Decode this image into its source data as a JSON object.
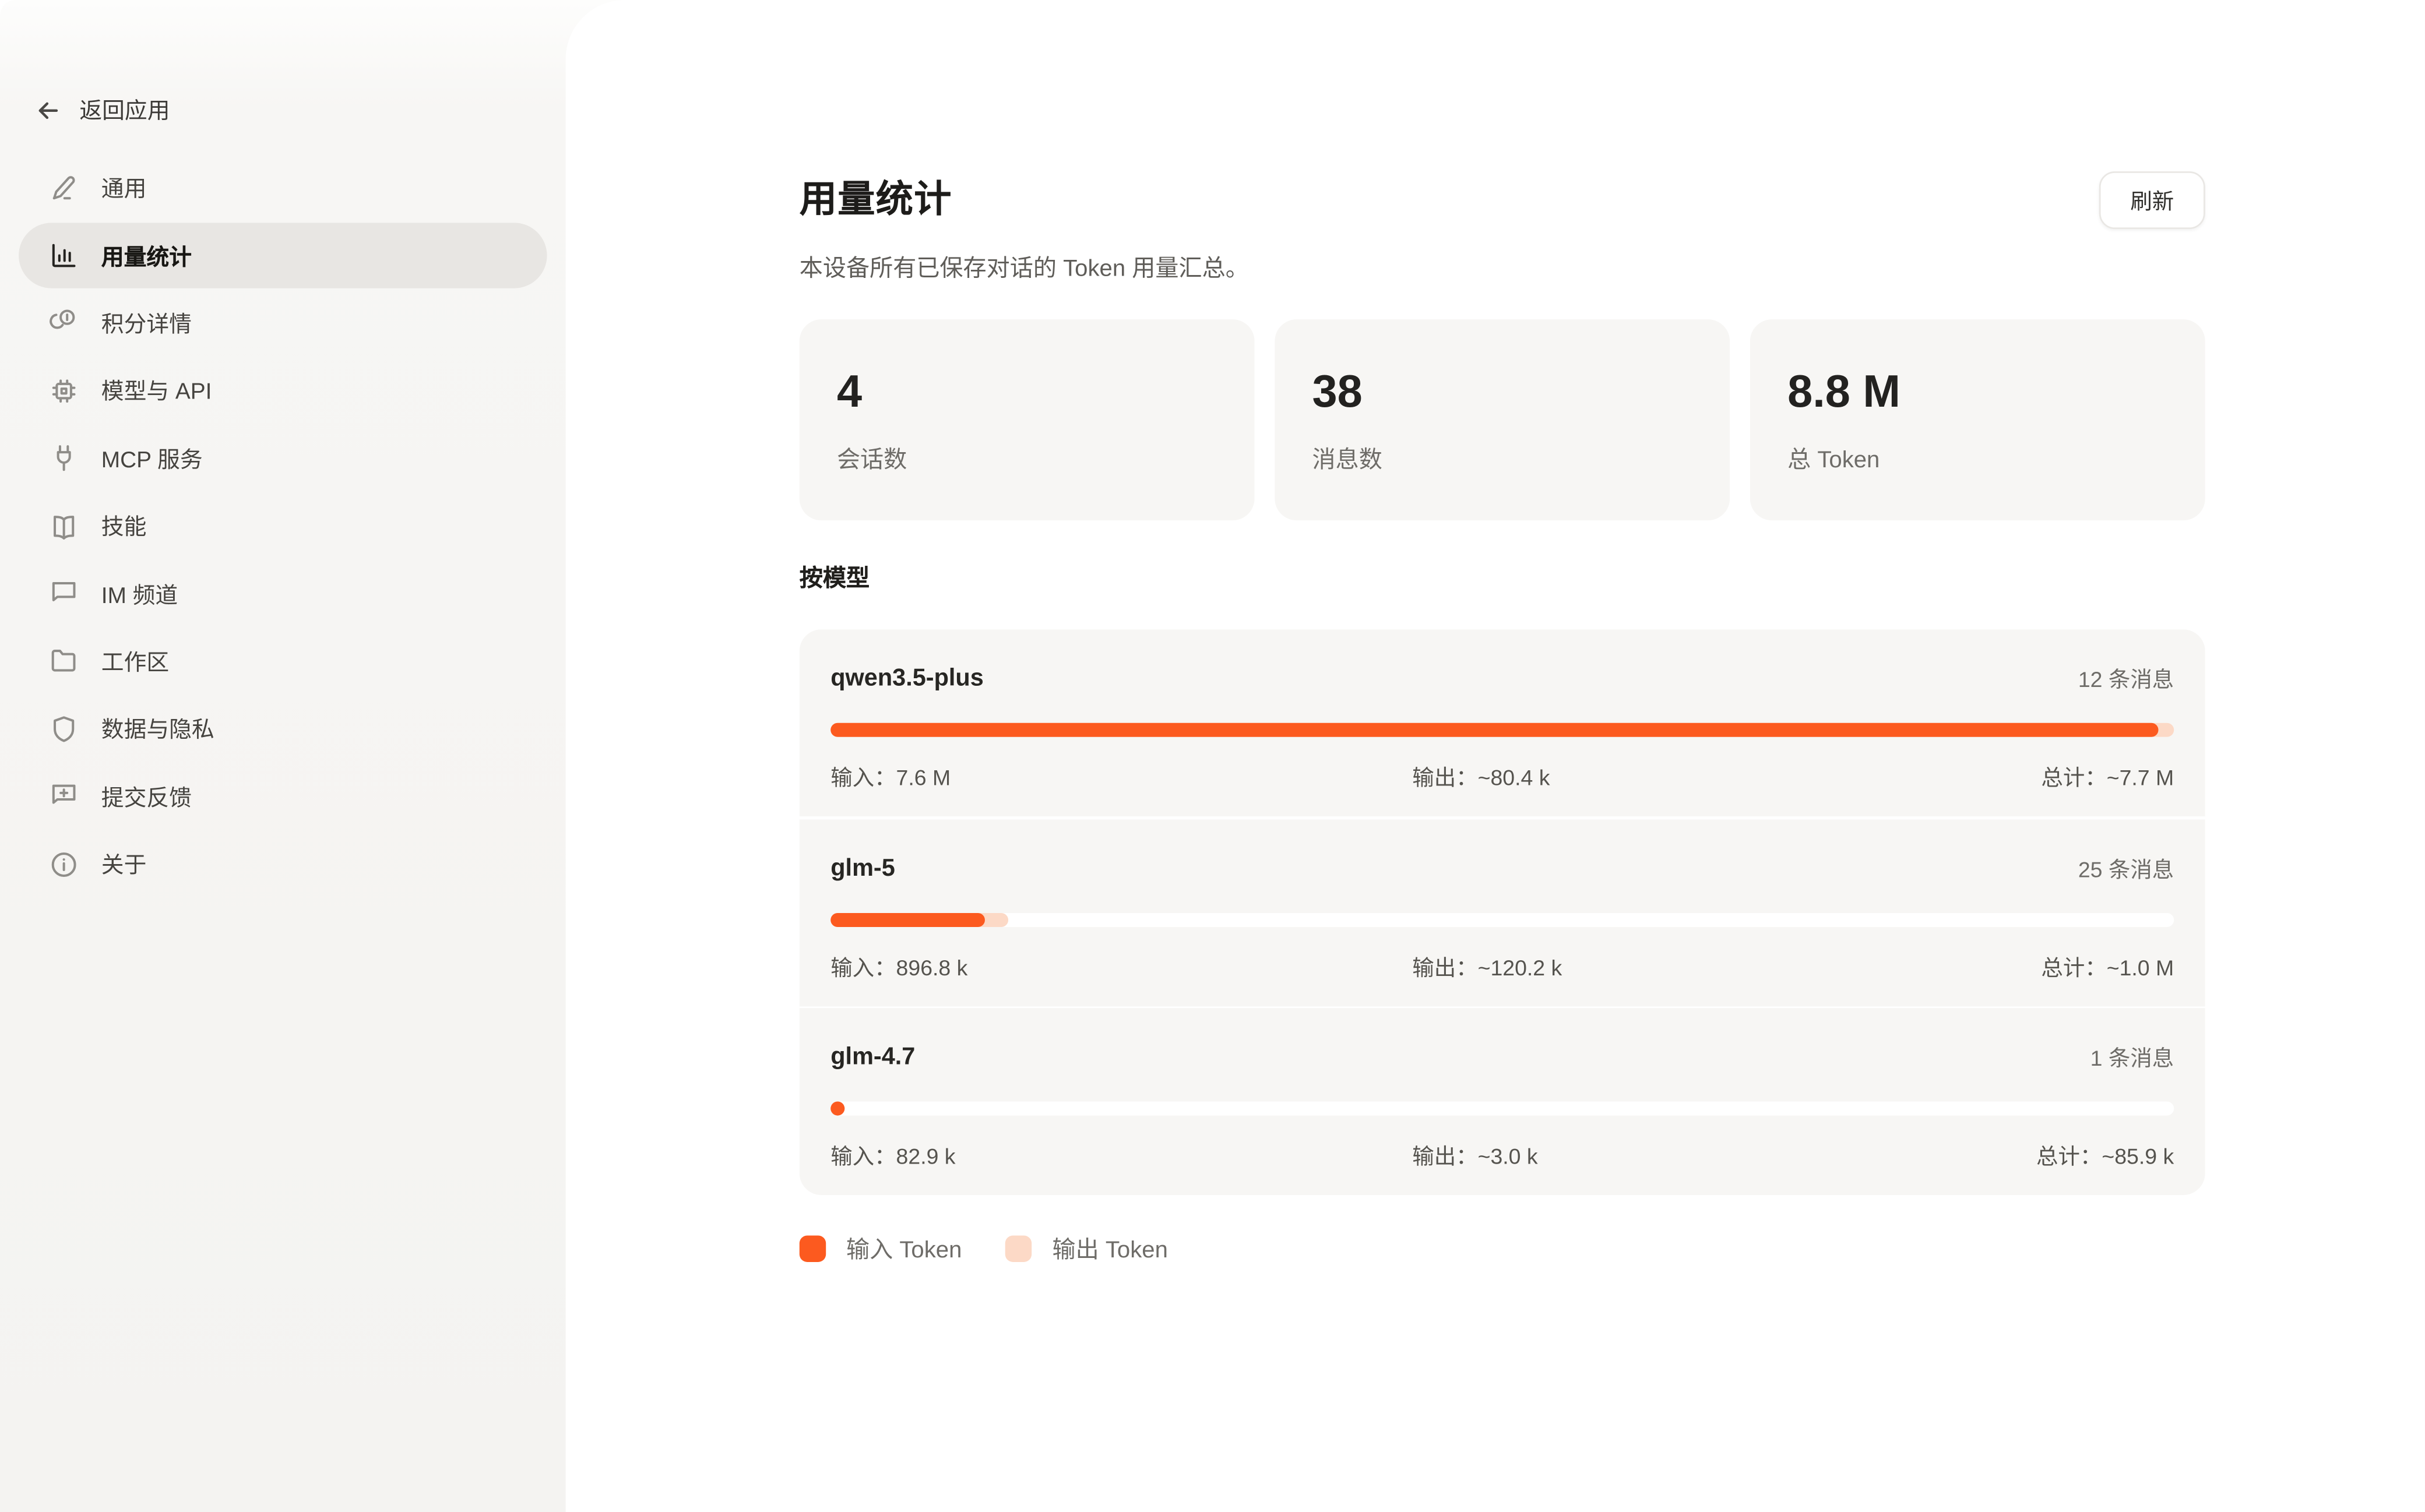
{
  "sidebar": {
    "back_label": "返回应用",
    "items": [
      {
        "label": "通用"
      },
      {
        "label": "用量统计",
        "active": true
      },
      {
        "label": "积分详情"
      },
      {
        "label": "模型与 API"
      },
      {
        "label": "MCP 服务"
      },
      {
        "label": "技能"
      },
      {
        "label": "IM 频道"
      },
      {
        "label": "工作区"
      },
      {
        "label": "数据与隐私"
      },
      {
        "label": "提交反馈"
      },
      {
        "label": "关于"
      }
    ]
  },
  "header": {
    "title": "用量统计",
    "subtitle": "本设备所有已保存对话的 Token 用量汇总。",
    "refresh_label": "刷新"
  },
  "stats": [
    {
      "value": "4",
      "label": "会话数"
    },
    {
      "value": "38",
      "label": "消息数"
    },
    {
      "value": "8.8 M",
      "label": "总 Token"
    }
  ],
  "by_model": {
    "heading": "按模型",
    "models": [
      {
        "name": "qwen3.5-plus",
        "messages": "12 条消息",
        "input_label": "输入：7.6 M",
        "output_label": "输出：~80.4 k",
        "total_label": "总计：~7.7 M",
        "input_pct": 98.8,
        "output_pct": 1.2
      },
      {
        "name": "glm-5",
        "messages": "25 条消息",
        "input_label": "输入：896.8 k",
        "output_label": "输出：~120.2 k",
        "total_label": "总计：~1.0 M",
        "input_pct": 11.5,
        "output_pct": 1.7
      },
      {
        "name": "glm-4.7",
        "messages": "1 条消息",
        "input_label": "输入：82.9 k",
        "output_label": "输出：~3.0 k",
        "total_label": "总计：~85.9 k",
        "input_pct": 1.0,
        "output_pct": 0.05
      }
    ]
  },
  "legend": [
    {
      "label": "输入 Token",
      "color": "#FC5A1F"
    },
    {
      "label": "输出 Token",
      "color": "#FCD9C6"
    }
  ],
  "colors": {
    "input": "#FC5A1F",
    "output": "#FCD9C6",
    "track": "#FFFFFF"
  }
}
